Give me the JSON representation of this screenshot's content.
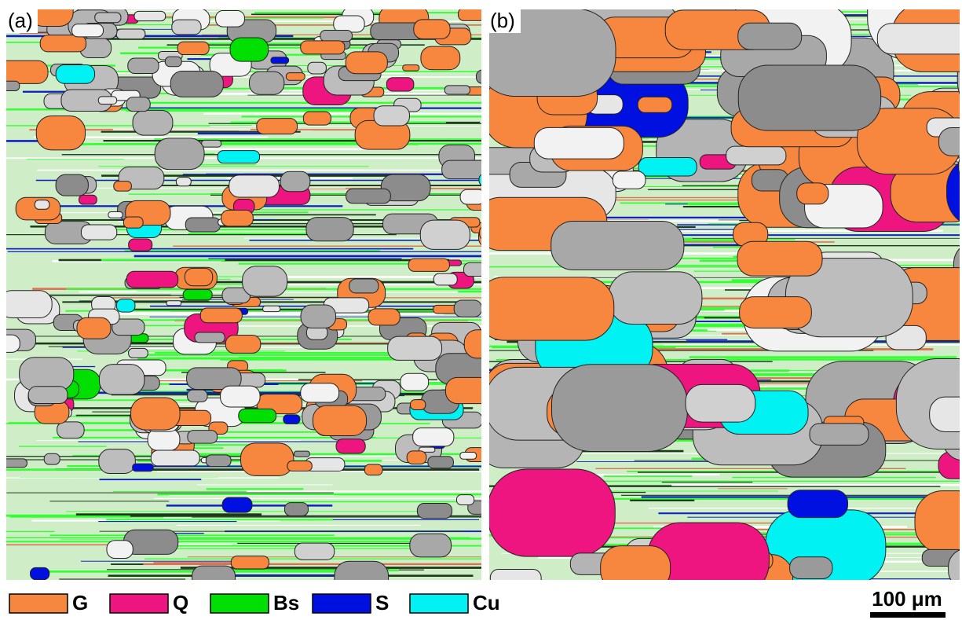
{
  "panels": [
    {
      "label": "(a)"
    },
    {
      "label": "(b)"
    }
  ],
  "legend": [
    {
      "name": "G",
      "color": "#f7873f"
    },
    {
      "name": "Q",
      "color": "#ee1580"
    },
    {
      "name": "Bs",
      "color": "#00e000"
    },
    {
      "name": "S",
      "color": "#0010e0"
    },
    {
      "name": "Cu",
      "color": "#00f2f2"
    }
  ],
  "scale_bar": {
    "label": "100 μm"
  }
}
